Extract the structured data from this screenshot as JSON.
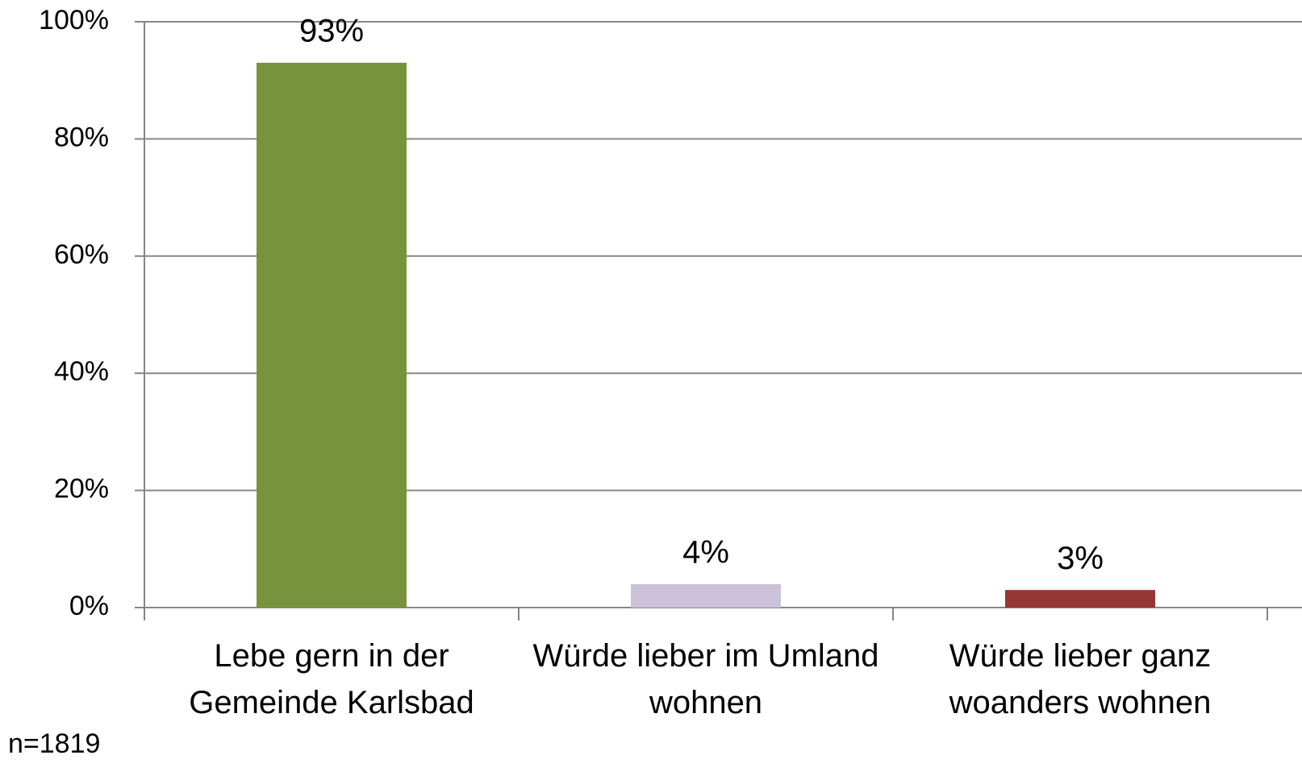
{
  "chart_data": {
    "type": "bar",
    "categories": [
      "Lebe gern in der Gemeinde Karlsbad",
      "Würde lieber im Umland wohnen",
      "Würde lieber ganz woanders wohnen"
    ],
    "values": [
      93,
      4,
      3
    ],
    "value_labels": [
      "93%",
      "4%",
      "3%"
    ],
    "colors": [
      "#77933c",
      "#ccc1da",
      "#953735"
    ],
    "ylim": [
      0,
      100
    ],
    "yticks": [
      {
        "value": 0,
        "label": "0%"
      },
      {
        "value": 20,
        "label": "20%"
      },
      {
        "value": 40,
        "label": "40%"
      },
      {
        "value": 60,
        "label": "60%"
      },
      {
        "value": 80,
        "label": "80%"
      },
      {
        "value": 100,
        "label": "100%"
      }
    ],
    "grid": true,
    "note": "n=1819"
  }
}
